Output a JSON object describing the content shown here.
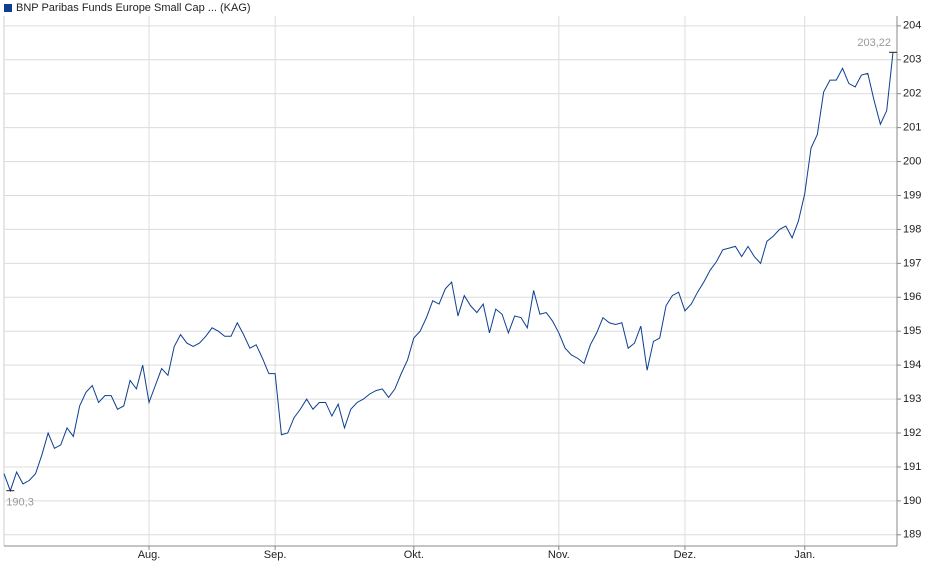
{
  "chart_data": {
    "type": "line",
    "categories": [
      null,
      null,
      null,
      null,
      null,
      null,
      null,
      null,
      null,
      null,
      null,
      null,
      null,
      null,
      null,
      null,
      null,
      null,
      null,
      null,
      null,
      null,
      null,
      "Aug.",
      null,
      null,
      null,
      null,
      null,
      null,
      null,
      null,
      null,
      null,
      null,
      null,
      null,
      null,
      null,
      null,
      null,
      null,
      null,
      "Sep.",
      null,
      null,
      null,
      null,
      null,
      null,
      null,
      null,
      null,
      null,
      null,
      null,
      null,
      null,
      null,
      null,
      null,
      null,
      null,
      null,
      null,
      "Okt.",
      null,
      null,
      null,
      null,
      null,
      null,
      null,
      null,
      null,
      null,
      null,
      null,
      null,
      null,
      null,
      null,
      null,
      null,
      null,
      null,
      null,
      null,
      "Nov.",
      null,
      null,
      null,
      null,
      null,
      null,
      null,
      null,
      null,
      null,
      null,
      null,
      null,
      null,
      null,
      null,
      null,
      null,
      null,
      "Dez.",
      null,
      null,
      null,
      null,
      null,
      null,
      null,
      null,
      null,
      null,
      null,
      null,
      null,
      null,
      null,
      null,
      null,
      null,
      "Jan.",
      null,
      null,
      null,
      null,
      null,
      null,
      null,
      null,
      null,
      null,
      null,
      null,
      null,
      null
    ],
    "series": [
      {
        "name": "BNP Paribas Funds Europe Small Cap ... (KAG)",
        "color": "#0d3f8f",
        "values": [
          190.8,
          190.3,
          190.85,
          190.5,
          190.6,
          190.8,
          191.35,
          192.0,
          191.55,
          191.65,
          192.15,
          191.9,
          192.8,
          193.2,
          193.4,
          192.9,
          193.1,
          193.1,
          192.7,
          192.8,
          193.55,
          193.3,
          194.0,
          192.9,
          193.4,
          193.9,
          193.7,
          194.55,
          194.9,
          194.65,
          194.55,
          194.65,
          194.85,
          195.1,
          195.0,
          194.85,
          194.85,
          195.25,
          194.9,
          194.5,
          194.6,
          194.2,
          193.75,
          193.75,
          191.95,
          192.0,
          192.45,
          192.7,
          193.0,
          192.7,
          192.9,
          192.9,
          192.5,
          192.85,
          192.15,
          192.7,
          192.9,
          193.0,
          193.15,
          193.25,
          193.3,
          193.05,
          193.3,
          193.75,
          194.15,
          194.8,
          195.0,
          195.4,
          195.9,
          195.8,
          196.25,
          196.45,
          195.45,
          196.05,
          195.75,
          195.55,
          195.8,
          194.95,
          195.65,
          195.5,
          194.95,
          195.45,
          195.4,
          195.1,
          196.2,
          195.5,
          195.55,
          195.3,
          194.95,
          194.5,
          194.3,
          194.2,
          194.05,
          194.6,
          194.95,
          195.4,
          195.25,
          195.2,
          195.25,
          194.5,
          194.65,
          195.15,
          193.85,
          194.7,
          194.8,
          195.75,
          196.05,
          196.15,
          195.6,
          195.8,
          196.15,
          196.45,
          196.8,
          197.05,
          197.4,
          197.45,
          197.5,
          197.2,
          197.5,
          197.2,
          197.0,
          197.65,
          197.8,
          198.0,
          198.1,
          197.75,
          198.25,
          199.05,
          200.4,
          200.8,
          202.05,
          202.4,
          202.4,
          202.75,
          202.3,
          202.2,
          202.55,
          202.6,
          201.8,
          201.1,
          201.5,
          203.22
        ]
      }
    ],
    "low_label": "190,3",
    "high_label": "203,22",
    "ylim": [
      188.67,
      204.29
    ],
    "yticks": [
      189,
      190,
      191,
      192,
      193,
      194,
      195,
      196,
      197,
      198,
      199,
      200,
      201,
      202,
      203,
      204
    ],
    "grid": true
  }
}
